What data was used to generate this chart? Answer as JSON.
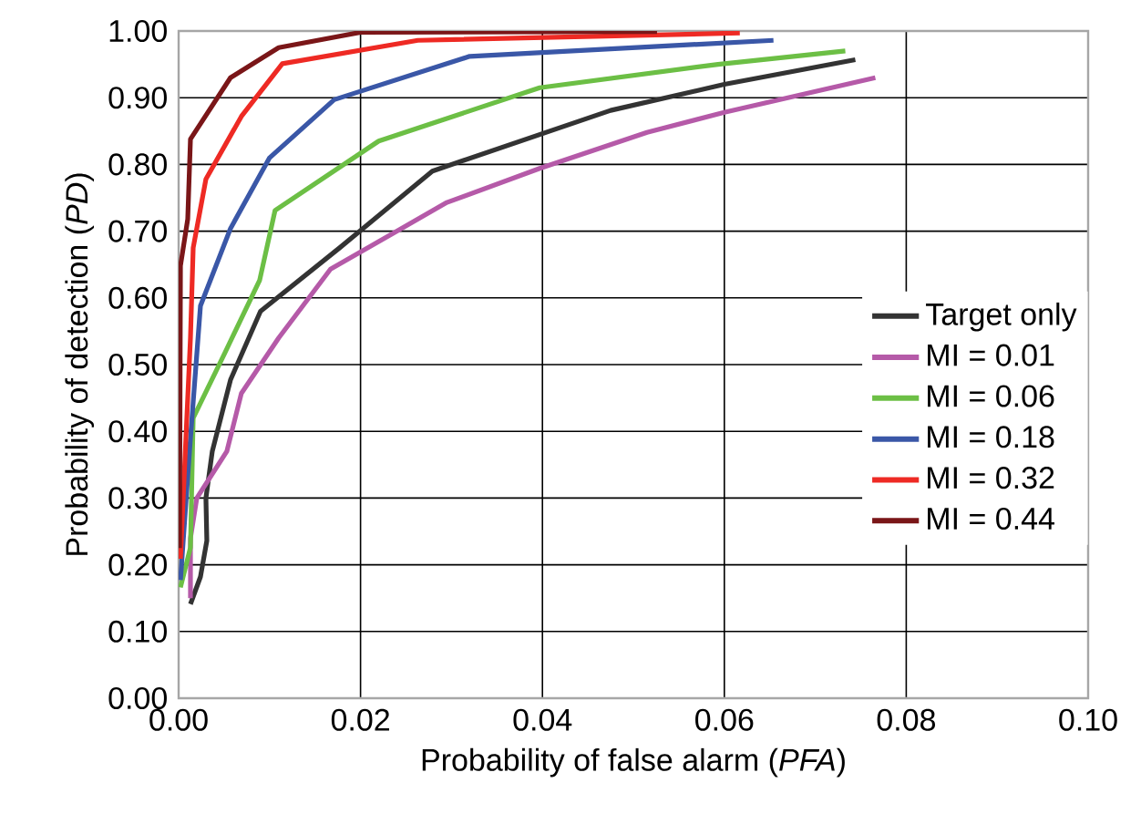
{
  "chart_data": {
    "type": "line",
    "xlabel": "Probability of false alarm (*PFA*)",
    "ylabel": "Probability of detection (*PD*)",
    "xlim": [
      0,
      0.1
    ],
    "ylim": [
      0,
      1
    ],
    "xticks": [
      {
        "value": 0,
        "label": "0.00"
      },
      {
        "value": 0.02,
        "label": "0.02"
      },
      {
        "value": 0.04,
        "label": "0.04"
      },
      {
        "value": 0.06,
        "label": "0.06"
      },
      {
        "value": 0.08,
        "label": "0.08"
      },
      {
        "value": 0.1,
        "label": "0.10"
      }
    ],
    "yticks": [
      {
        "value": 0,
        "label": "0.00"
      },
      {
        "value": 0.1,
        "label": "0.10"
      },
      {
        "value": 0.2,
        "label": "0.20"
      },
      {
        "value": 0.3,
        "label": "0.30"
      },
      {
        "value": 0.4,
        "label": "0.40"
      },
      {
        "value": 0.5,
        "label": "0.50"
      },
      {
        "value": 0.6,
        "label": "0.60"
      },
      {
        "value": 0.7,
        "label": "0.70"
      },
      {
        "value": 0.8,
        "label": "0.80"
      },
      {
        "value": 0.9,
        "label": "0.90"
      },
      {
        "value": 1,
        "label": "1.00"
      }
    ],
    "grid": true,
    "legend": "right",
    "marker": "none",
    "line_style": "solid",
    "series": [
      {
        "name": "Target only",
        "color": "#333333",
        "x": [
          0.0013,
          0.0024,
          0.0031,
          0.003,
          0.0037,
          0.0057,
          0.009,
          0.0177,
          0.0279,
          0.0475,
          0.06,
          0.0744
        ],
        "values": [
          0.141,
          0.182,
          0.236,
          0.3,
          0.37,
          0.477,
          0.58,
          0.675,
          0.79,
          0.881,
          0.92,
          0.957
        ]
      },
      {
        "name": "MI = 0.01",
        "color": "#b55aa8",
        "x": [
          0.0013,
          0.0013,
          0.002,
          0.0053,
          0.0069,
          0.011,
          0.0167,
          0.0295,
          0.0397,
          0.0515,
          0.06,
          0.0766
        ],
        "values": [
          0.15,
          0.24,
          0.3,
          0.37,
          0.457,
          0.54,
          0.643,
          0.743,
          0.794,
          0.848,
          0.878,
          0.93
        ]
      },
      {
        "name": "MI = 0.06",
        "color": "#6cbf45",
        "x": [
          0.0002,
          0.0013,
          0.0016,
          0.0051,
          0.0089,
          0.0106,
          0.022,
          0.0397,
          0.0593,
          0.0733
        ],
        "values": [
          0.166,
          0.226,
          0.42,
          0.518,
          0.626,
          0.731,
          0.835,
          0.915,
          0.95,
          0.97
        ]
      },
      {
        "name": "MI = 0.18",
        "color": "#3a57a7",
        "x": [
          0.0002,
          0.0013,
          0.0024,
          0.0057,
          0.01,
          0.0171,
          0.032,
          0.0654
        ],
        "values": [
          0.177,
          0.39,
          0.588,
          0.704,
          0.81,
          0.897,
          0.962,
          0.986
        ]
      },
      {
        "name": "MI = 0.32",
        "color": "#ee2a24",
        "x": [
          0.0002,
          0.0013,
          0.0016,
          0.003,
          0.0069,
          0.0114,
          0.0263,
          0.0617
        ],
        "values": [
          0.209,
          0.54,
          0.675,
          0.778,
          0.872,
          0.951,
          0.986,
          0.997
        ]
      },
      {
        "name": "MI = 0.44",
        "color": "#7a1618",
        "x": [
          0.0001,
          0.0002,
          0.001,
          0.0013,
          0.0057,
          0.011,
          0.02,
          0.0526
        ],
        "values": [
          0.225,
          0.648,
          0.718,
          0.838,
          0.93,
          0.975,
          0.998,
          0.999
        ]
      }
    ]
  }
}
